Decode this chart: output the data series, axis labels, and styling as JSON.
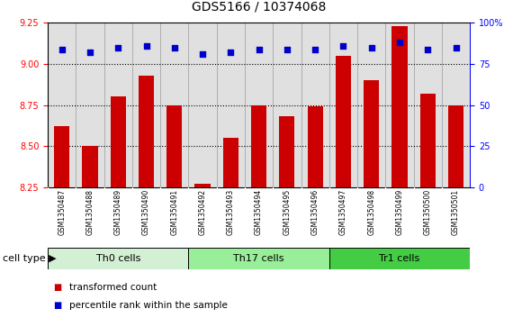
{
  "title": "GDS5166 / 10374068",
  "samples": [
    "GSM1350487",
    "GSM1350488",
    "GSM1350489",
    "GSM1350490",
    "GSM1350491",
    "GSM1350492",
    "GSM1350493",
    "GSM1350494",
    "GSM1350495",
    "GSM1350496",
    "GSM1350497",
    "GSM1350498",
    "GSM1350499",
    "GSM1350500",
    "GSM1350501"
  ],
  "bar_values": [
    8.62,
    8.5,
    8.8,
    8.93,
    8.75,
    8.27,
    8.55,
    8.75,
    8.68,
    8.74,
    9.05,
    8.9,
    9.23,
    8.82,
    8.75
  ],
  "dot_values": [
    84,
    82,
    85,
    86,
    85,
    81,
    82,
    84,
    84,
    84,
    86,
    85,
    88,
    84,
    85
  ],
  "groups": [
    {
      "label": "Th0 cells",
      "start": 0,
      "end": 5,
      "color": "#d4f0d4"
    },
    {
      "label": "Th17 cells",
      "start": 5,
      "end": 10,
      "color": "#99ee99"
    },
    {
      "label": "Tr1 cells",
      "start": 10,
      "end": 15,
      "color": "#44cc44"
    }
  ],
  "ylim_left": [
    8.25,
    9.25
  ],
  "ylim_right": [
    0,
    100
  ],
  "yticks_left": [
    8.25,
    8.5,
    8.75,
    9.0,
    9.25
  ],
  "yticks_right": [
    0,
    25,
    50,
    75,
    100
  ],
  "bar_color": "#cc0000",
  "dot_color": "#0000cc",
  "bar_width": 0.55,
  "bg_color": "#ffffff",
  "xtick_bg": "#cccccc",
  "cell_type_label": "cell type",
  "legend_bar": "transformed count",
  "legend_dot": "percentile rank within the sample",
  "title_fontsize": 10,
  "axis_fontsize": 8,
  "tick_fontsize": 7,
  "xtick_fontsize": 5.5,
  "legend_fontsize": 7.5
}
